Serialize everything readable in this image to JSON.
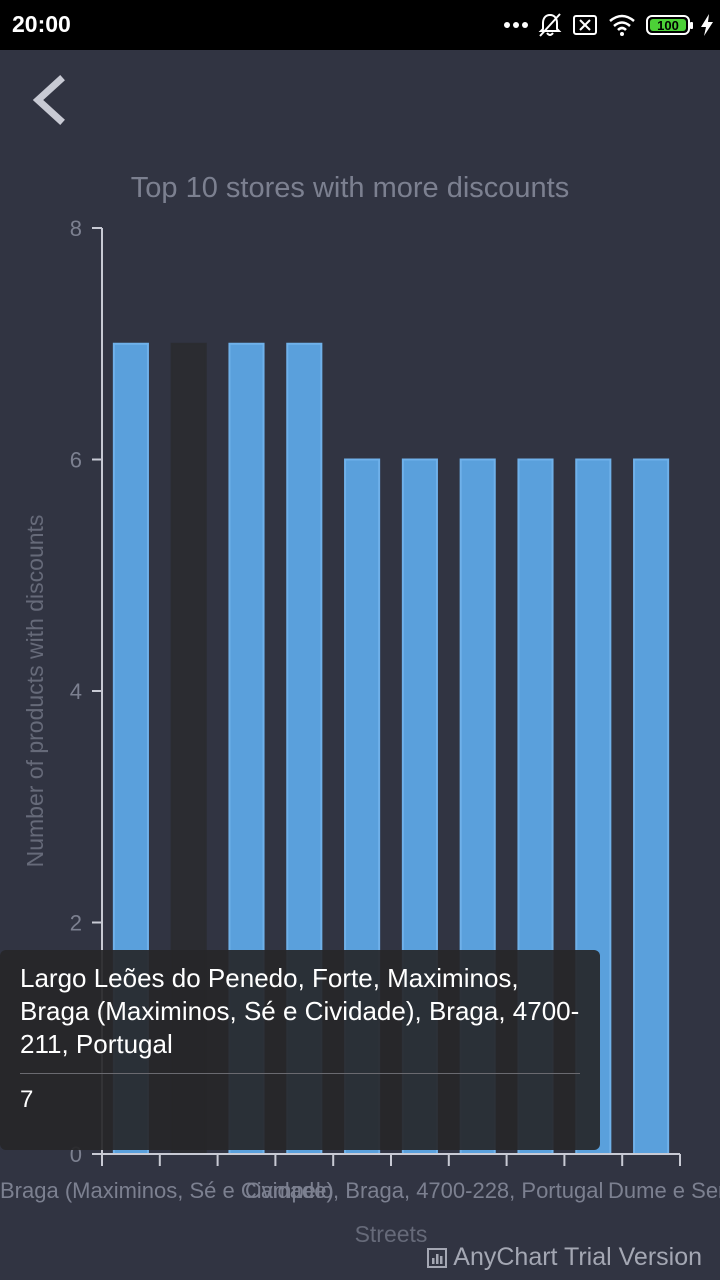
{
  "status_bar": {
    "time": "20:00",
    "battery": "100",
    "icons": [
      "more-dots-icon",
      "bell-off-icon",
      "sim-off-icon",
      "wifi-icon",
      "battery-icon",
      "charging-bolt-icon"
    ]
  },
  "nav": {
    "back_icon": "chevron-left-icon"
  },
  "tooltip": {
    "title": "Largo Leões do Penedo, Forte, Maximinos, Braga (Maximinos, Sé e Cividade), Braga, 4700-211, Portugal",
    "value": "7"
  },
  "credits": {
    "label": "AnyChart Trial Version",
    "icon": "bar-chart-icon"
  },
  "colors": {
    "background": "#313442",
    "bar": "#5aa0dc",
    "bar_stroke": "#6fb1ea",
    "bar_hover": "#2b2c31",
    "axis": "#c8cad4",
    "muted_text": "#7c8090"
  },
  "chart_data": {
    "type": "bar",
    "title": "Top 10 stores with more discounts",
    "xlabel": "Streets",
    "ylabel": "Number of products with discounts",
    "ylim": [
      0,
      8
    ],
    "yticks": [
      "0",
      "2",
      "4",
      "6",
      "8"
    ],
    "values": [
      7,
      7,
      7,
      7,
      6,
      6,
      6,
      6,
      6,
      6
    ],
    "highlighted_index": 1,
    "visible_category_text": [
      "Braga (Maximinos, Sé e Cividade)",
      "Campelo, Braga, 4700-228, Portugal",
      "Dume e Sem"
    ]
  }
}
